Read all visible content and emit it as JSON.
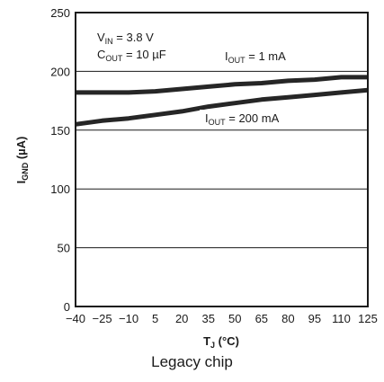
{
  "chart_data": {
    "type": "line",
    "x_ticks": [
      -40,
      -25,
      -10,
      5,
      20,
      35,
      50,
      65,
      80,
      95,
      110,
      125
    ],
    "y_ticks": [
      0,
      50,
      100,
      150,
      200,
      250
    ],
    "xlim": [
      -40,
      125
    ],
    "ylim": [
      0,
      250
    ],
    "grid": true,
    "series": [
      {
        "name_main": "I",
        "name_sub": "OUT",
        "name_rest": " = 1 mA",
        "x": [
          -40,
          -25,
          -10,
          5,
          20,
          35,
          50,
          65,
          80,
          95,
          110,
          125
        ],
        "y": [
          182,
          182,
          182,
          183,
          185,
          187,
          189,
          190,
          192,
          193,
          195,
          195
        ]
      },
      {
        "name_main": "I",
        "name_sub": "OUT",
        "name_rest": " = 200 mA",
        "x": [
          -40,
          -25,
          -10,
          5,
          20,
          35,
          50,
          65,
          80,
          95,
          110,
          125
        ],
        "y": [
          155,
          158,
          160,
          163,
          166,
          170,
          173,
          176,
          178,
          180,
          182,
          184
        ]
      }
    ],
    "annotations": {
      "vin_main": "V",
      "vin_sub": "IN",
      "vin_rest": " = 3.8 V",
      "cout_main": "C",
      "cout_sub": "OUT",
      "cout_rest": " = 10 µF"
    },
    "ylabel_main": "I",
    "ylabel_sub": "GND",
    "ylabel_rest": " (µA)",
    "xlabel_main": "T",
    "xlabel_sub": "J",
    "xlabel_rest": " (°C)"
  },
  "caption": "Legacy chip",
  "colors": {
    "line": "#262626",
    "grid": "#1a1a1a"
  }
}
